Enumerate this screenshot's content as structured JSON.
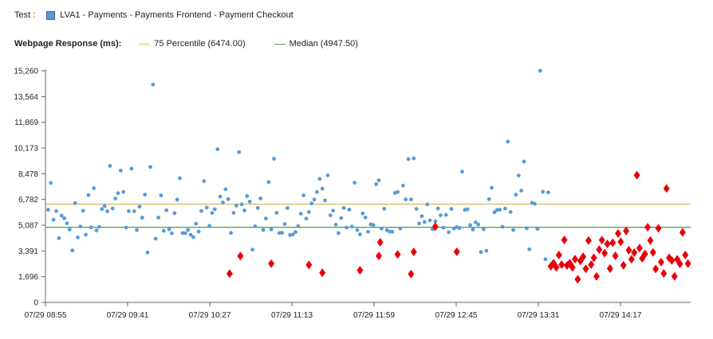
{
  "header": {
    "test_label": "Test :",
    "test_value": "LVA1 - Payments - Payments Frontend - Payment Checkout",
    "series_color": "#5a9bd4",
    "response_label": "Webpage Response (ms):",
    "legend": [
      {
        "label": "75 Percentile (6474.00)",
        "color": "#d4c063"
      },
      {
        "label": "Median (4947.50)",
        "color": "#3aa63a"
      }
    ]
  },
  "chart_data": {
    "type": "scatter",
    "title": "",
    "xlabel": "",
    "ylabel": "",
    "ylim": [
      0,
      15260
    ],
    "y_ticks": [
      "0",
      "1,696",
      "3,391",
      "5,087",
      "6,782",
      "8,478",
      "10,173",
      "11,869",
      "13,564",
      "15,260"
    ],
    "y_tick_values": [
      0,
      1696,
      3391,
      5087,
      6782,
      8478,
      10173,
      11869,
      13564,
      15260
    ],
    "x_ticks": [
      "07/29 08:55",
      "07/29 09:41",
      "07/29 10:27",
      "07/29 11:13",
      "07/29 11:59",
      "07/29 12:45",
      "07/29 13:31",
      "07/29 14:17"
    ],
    "reference_lines": [
      {
        "name": "75 Percentile",
        "value": 6474.0,
        "color": "#d4c063"
      },
      {
        "name": "Median",
        "value": 4947.5,
        "color": "#3aa63a"
      }
    ],
    "colors": {
      "normal": "#5a9bd4",
      "alert": "#e8000b"
    },
    "series": [
      {
        "marker": "circle",
        "points": [
          [
            1.0,
            6105
          ],
          [
            2.0,
            7874
          ],
          [
            3.0,
            5444
          ],
          [
            4.0,
            6019
          ],
          [
            5.0,
            4235
          ],
          [
            6.0,
            5719
          ],
          [
            7.0,
            5541
          ],
          [
            8.0,
            5213
          ],
          [
            9.0,
            4804
          ],
          [
            10.0,
            3424
          ],
          [
            11.0,
            6543
          ],
          [
            12.0,
            4286
          ],
          [
            13.0,
            5000
          ],
          [
            14.0,
            6043
          ],
          [
            15.0,
            4458
          ],
          [
            16.0,
            7072
          ],
          [
            17.0,
            4946
          ],
          [
            18.0,
            7521
          ],
          [
            19.0,
            4745
          ],
          [
            20.0,
            4981
          ],
          [
            21.0,
            6152
          ],
          [
            22.0,
            6350
          ],
          [
            23.0,
            6004
          ],
          [
            24.0,
            8997
          ],
          [
            25.0,
            6187
          ],
          [
            26.0,
            6845
          ],
          [
            27.0,
            7195
          ],
          [
            28.0,
            8685
          ],
          [
            29.0,
            7276
          ],
          [
            30.0,
            4934
          ],
          [
            31.0,
            6007
          ],
          [
            32.0,
            8810
          ],
          [
            33.0,
            6008
          ],
          [
            34.0,
            4769
          ],
          [
            35.0,
            6317
          ],
          [
            36.0,
            5582
          ],
          [
            37.0,
            7100
          ],
          [
            38.0,
            3284
          ],
          [
            39.0,
            8928
          ],
          [
            40.0,
            14360
          ],
          [
            41.0,
            4198
          ],
          [
            42.0,
            5587
          ],
          [
            43.0,
            7051
          ],
          [
            44.0,
            4717
          ],
          [
            45.0,
            6072
          ],
          [
            46.0,
            4812
          ],
          [
            47.0,
            4557
          ],
          [
            48.0,
            5883
          ],
          [
            49.0,
            6776
          ],
          [
            50.0,
            8184
          ],
          [
            51.0,
            4569
          ],
          [
            52.0,
            4564
          ],
          [
            53.0,
            4772
          ],
          [
            54.0,
            4458
          ],
          [
            55.0,
            4301
          ],
          [
            56.0,
            5191
          ],
          [
            57.0,
            4672
          ],
          [
            58.0,
            6021
          ],
          [
            59.0,
            7992
          ],
          [
            60.0,
            6244
          ],
          [
            61.0,
            5047
          ],
          [
            62.0,
            5894
          ],
          [
            63.0,
            6136
          ],
          [
            64.0,
            10094
          ],
          [
            65.0,
            6969
          ],
          [
            66.0,
            6584
          ],
          [
            67.0,
            7455
          ],
          [
            68.0,
            6807
          ],
          [
            69.0,
            4579
          ],
          [
            70.0,
            5900
          ],
          [
            71.0,
            6379
          ],
          [
            72.0,
            9899
          ],
          [
            73.0,
            6459
          ],
          [
            74.0,
            6060
          ],
          [
            75.0,
            7005
          ],
          [
            76.0,
            6641
          ],
          [
            77.0,
            3480
          ],
          [
            78.0,
            5016
          ],
          [
            79.0,
            6227
          ],
          [
            80.0,
            6850
          ],
          [
            81.0,
            4779
          ],
          [
            82.0,
            5527
          ],
          [
            83.0,
            7929
          ],
          [
            84.0,
            4810
          ],
          [
            85.0,
            9465
          ],
          [
            86.0,
            5900
          ],
          [
            87.0,
            4576
          ],
          [
            88.0,
            4585
          ],
          [
            89.0,
            5163
          ],
          [
            90.0,
            6221
          ],
          [
            91.0,
            4438
          ],
          [
            92.0,
            4476
          ],
          [
            93.0,
            4638
          ],
          [
            94.0,
            5029
          ],
          [
            95.0,
            5843
          ],
          [
            96.0,
            7050
          ],
          [
            97.0,
            5525
          ],
          [
            98.0,
            5957
          ],
          [
            99.0,
            6524
          ],
          [
            100.0,
            6774
          ],
          [
            101.0,
            7275
          ],
          [
            102.0,
            8143
          ],
          [
            103.0,
            7498
          ],
          [
            104.0,
            6719
          ],
          [
            105.0,
            8373
          ],
          [
            106.0,
            5742
          ],
          [
            107.0,
            6046
          ],
          [
            108.0,
            5127
          ],
          [
            109.0,
            4569
          ],
          [
            110.0,
            5556
          ],
          [
            111.0,
            6221
          ],
          [
            112.0,
            4932
          ],
          [
            113.0,
            6113
          ],
          [
            114.0,
            5000
          ],
          [
            115.0,
            7891
          ],
          [
            116.0,
            4767
          ],
          [
            117.0,
            4486
          ],
          [
            118.0,
            5862
          ],
          [
            119.0,
            5602
          ],
          [
            120.0,
            4656
          ],
          [
            121.0,
            5142
          ],
          [
            122.0,
            5098
          ],
          [
            123.0,
            7791
          ],
          [
            124.0,
            8040
          ],
          [
            125.0,
            4864
          ],
          [
            126.0,
            6168
          ],
          [
            127.0,
            4755
          ],
          [
            128.0,
            4675
          ],
          [
            129.0,
            4652
          ],
          [
            130.0,
            7209
          ],
          [
            131.0,
            7283
          ],
          [
            132.0,
            4864
          ],
          [
            133.0,
            7694
          ],
          [
            134.0,
            6788
          ],
          [
            135.0,
            9449
          ],
          [
            136.0,
            6786
          ],
          [
            137.0,
            9489
          ],
          [
            138.0,
            6156
          ],
          [
            139.0,
            5200
          ],
          [
            140.0,
            5681
          ],
          [
            141.0,
            5302
          ],
          [
            142.0,
            6461
          ],
          [
            143.0,
            5402
          ],
          [
            144.0,
            4823
          ],
          [
            145.0,
            5346
          ],
          [
            146.0,
            6186
          ],
          [
            147.0,
            5744
          ],
          [
            148.0,
            4919
          ],
          [
            149.0,
            5765
          ],
          [
            150.0,
            4622
          ],
          [
            151.0,
            6158
          ],
          [
            152.0,
            4868
          ],
          [
            153.0,
            4963
          ],
          [
            154.0,
            4896
          ],
          [
            155.0,
            8614
          ],
          [
            156.0,
            6093
          ],
          [
            157.0,
            6139
          ],
          [
            158.0,
            5097
          ],
          [
            159.0,
            4804
          ],
          [
            160.0,
            5276
          ],
          [
            161.0,
            5135
          ],
          [
            162.0,
            3313
          ],
          [
            163.0,
            4818
          ],
          [
            164.0,
            3402
          ],
          [
            165.0,
            6806
          ],
          [
            166.0,
            7554
          ],
          [
            167.0,
            5944
          ],
          [
            168.0,
            6097
          ],
          [
            169.0,
            6114
          ],
          [
            170.0,
            4982
          ],
          [
            171.0,
            6187
          ],
          [
            172.0,
            10597
          ],
          [
            173.0,
            5957
          ],
          [
            174.0,
            4773
          ],
          [
            175.0,
            7096
          ],
          [
            176.0,
            8359
          ],
          [
            177.0,
            7367
          ],
          [
            178.0,
            9278
          ],
          [
            179.0,
            4888
          ],
          [
            180.0,
            3499
          ],
          [
            181.0,
            6567
          ],
          [
            182.0,
            6498
          ],
          [
            183.0,
            4843
          ],
          [
            184.0,
            15260
          ],
          [
            185.0,
            7296
          ],
          [
            186.0,
            2844
          ],
          [
            187.0,
            7244
          ]
        ]
      },
      {
        "marker": "diamond",
        "points": [
          [
            68.5,
            1897
          ],
          [
            72.5,
            3052
          ],
          [
            84.0,
            2559
          ],
          [
            98.0,
            2474
          ],
          [
            103.0,
            1955
          ],
          [
            117.0,
            2115
          ],
          [
            124.0,
            3063
          ],
          [
            124.5,
            3960
          ],
          [
            131.0,
            3162
          ],
          [
            136.0,
            1866
          ],
          [
            137.0,
            3331
          ],
          [
            145.0,
            4987
          ],
          [
            153.0,
            3338
          ],
          [
            188.0,
            2377
          ],
          [
            189.0,
            2580
          ],
          [
            190.0,
            2311
          ],
          [
            191.0,
            3122
          ],
          [
            192.0,
            2489
          ],
          [
            193.0,
            4118
          ],
          [
            194.0,
            2430
          ],
          [
            195.0,
            2585
          ],
          [
            196.0,
            2305
          ],
          [
            197.0,
            2850
          ],
          [
            198.0,
            1524
          ],
          [
            199.0,
            2733
          ],
          [
            200.0,
            3007
          ],
          [
            201.0,
            2214
          ],
          [
            202.0,
            4080
          ],
          [
            203.0,
            2493
          ],
          [
            204.0,
            2935
          ],
          [
            205.0,
            1708
          ],
          [
            206.0,
            3474
          ],
          [
            207.0,
            4104
          ],
          [
            208.0,
            3244
          ],
          [
            209.0,
            3856
          ],
          [
            210.0,
            2231
          ],
          [
            211.0,
            3932
          ],
          [
            212.0,
            3071
          ],
          [
            213.0,
            4542
          ],
          [
            214.0,
            3990
          ],
          [
            215.0,
            2446
          ],
          [
            216.0,
            4706
          ],
          [
            217.0,
            3441
          ],
          [
            218.0,
            2847
          ],
          [
            219.0,
            3286
          ],
          [
            220.0,
            8381
          ],
          [
            221.0,
            3582
          ],
          [
            222.0,
            2906
          ],
          [
            223.0,
            3190
          ],
          [
            224.0,
            4949
          ],
          [
            225.0,
            4079
          ],
          [
            226.0,
            3294
          ],
          [
            227.0,
            2203
          ],
          [
            228.0,
            4881
          ],
          [
            229.0,
            2657
          ],
          [
            230.0,
            1906
          ],
          [
            231.0,
            7508
          ],
          [
            232.0,
            2935
          ],
          [
            233.0,
            2766
          ],
          [
            234.0,
            1715
          ],
          [
            235.0,
            2841
          ],
          [
            236.0,
            2536
          ],
          [
            237.0,
            4612
          ],
          [
            238.0,
            3121
          ],
          [
            239.0,
            2556
          ]
        ]
      }
    ]
  }
}
